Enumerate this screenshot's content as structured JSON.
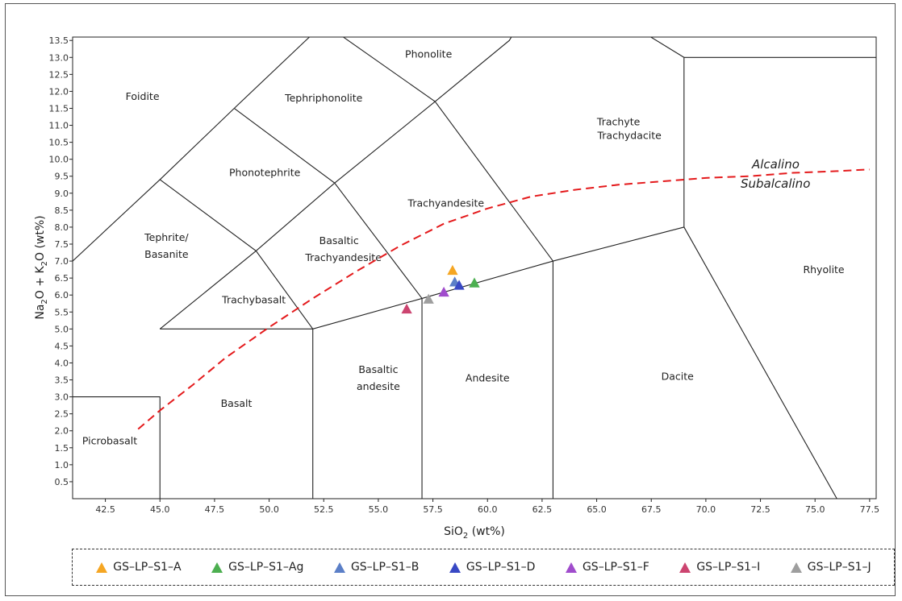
{
  "chart_data": {
    "type": "scatter",
    "title": "",
    "xlabel": "SiO",
    "xlabel_sub": "2",
    "xlabel_unit": " (wt%)",
    "ylabel_parts": [
      "Na",
      "2",
      "O + K",
      "2",
      "O (wt%)"
    ],
    "xlim": [
      41,
      77.8
    ],
    "ylim": [
      0,
      13.6
    ],
    "xticks": [
      "42.5",
      "45.0",
      "47.5",
      "50.0",
      "52.5",
      "55.0",
      "57.5",
      "60.0",
      "62.5",
      "65.0",
      "67.5",
      "70.0",
      "72.5",
      "75.0",
      "77.5"
    ],
    "yticks": [
      "0.5",
      "1.0",
      "1.5",
      "2.0",
      "2.5",
      "3.0",
      "3.5",
      "4.0",
      "4.5",
      "5.0",
      "5.5",
      "6.0",
      "6.5",
      "7.0",
      "7.5",
      "8.0",
      "8.5",
      "9.0",
      "9.5",
      "10.0",
      "10.5",
      "11.0",
      "11.5",
      "12.0",
      "12.5",
      "13.0",
      "13.5"
    ],
    "grid": false,
    "legend_placement": "bottom",
    "fields": [
      {
        "name": "Foidite",
        "x": 44.2,
        "y": 11.75
      },
      {
        "name": "Tephriphonolite",
        "x": 52.5,
        "y": 11.7
      },
      {
        "name": "Phonolite",
        "x": 57.3,
        "y": 13.0
      },
      {
        "name": "Trachyte",
        "x": 66.0,
        "y": 11.0
      },
      {
        "name": "Trachydacite",
        "x": 66.5,
        "y": 10.6
      },
      {
        "name": "Phonotephrite",
        "x": 49.8,
        "y": 9.5
      },
      {
        "name": "Trachyandesite",
        "x": 58.1,
        "y": 8.6
      },
      {
        "name": "Tephrite/",
        "x": 45.3,
        "y": 7.6
      },
      {
        "name": "Basanite",
        "x": 45.3,
        "y": 7.1
      },
      {
        "name": "Basaltic",
        "x": 53.2,
        "y": 7.5
      },
      {
        "name": "Trachyandesite",
        "x": 53.4,
        "y": 7.0
      },
      {
        "name": "Trachybasalt",
        "x": 49.3,
        "y": 5.75
      },
      {
        "name": "Rhyolite",
        "x": 75.4,
        "y": 6.65
      },
      {
        "name": "Basaltic",
        "x": 55.0,
        "y": 3.7
      },
      {
        "name": "andesite",
        "x": 55.0,
        "y": 3.2
      },
      {
        "name": "Andesite",
        "x": 60.0,
        "y": 3.45
      },
      {
        "name": "Dacite",
        "x": 68.7,
        "y": 3.5
      },
      {
        "name": "Basalt",
        "x": 48.5,
        "y": 2.7
      },
      {
        "name": "Picrobasalt",
        "x": 42.7,
        "y": 1.6
      }
    ],
    "boundaries": [
      [
        [
          41,
          3
        ],
        [
          45,
          3
        ],
        [
          45,
          0
        ]
      ],
      [
        [
          45,
          5
        ],
        [
          52,
          5
        ],
        [
          57,
          5.9
        ],
        [
          63,
          7
        ],
        [
          69,
          8
        ],
        [
          76,
          0
        ]
      ],
      [
        [
          52,
          0
        ],
        [
          52,
          5
        ]
      ],
      [
        [
          57,
          0
        ],
        [
          57,
          5.9
        ]
      ],
      [
        [
          63,
          0
        ],
        [
          63,
          7
        ]
      ],
      [
        [
          69,
          8
        ],
        [
          69,
          13
        ],
        [
          77.8,
          13
        ]
      ],
      [
        [
          41,
          7
        ],
        [
          45,
          9.4
        ],
        [
          48.4,
          11.5
        ],
        [
          52.5,
          14
        ]
      ],
      [
        [
          45,
          9.4
        ],
        [
          49.4,
          7.3
        ],
        [
          52,
          5
        ]
      ],
      [
        [
          45,
          5
        ],
        [
          49.4,
          7.3
        ],
        [
          53,
          9.3
        ],
        [
          57.6,
          11.7
        ],
        [
          61,
          13.5
        ],
        [
          63.5,
          16.2
        ]
      ],
      [
        [
          48.4,
          11.5
        ],
        [
          53,
          9.3
        ],
        [
          57,
          5.9
        ]
      ],
      [
        [
          57.6,
          11.7
        ],
        [
          63,
          7
        ]
      ],
      [
        [
          57.6,
          11.7
        ],
        [
          50.3,
          15
        ]
      ],
      [
        [
          65.2,
          14.5
        ],
        [
          69,
          13
        ]
      ]
    ],
    "divider_line": [
      [
        44,
        2.05
      ],
      [
        45,
        2.6
      ],
      [
        46.5,
        3.35
      ],
      [
        48,
        4.15
      ],
      [
        50,
        5.05
      ],
      [
        52,
        5.9
      ],
      [
        54,
        6.7
      ],
      [
        56,
        7.45
      ],
      [
        58,
        8.1
      ],
      [
        60,
        8.55
      ],
      [
        62,
        8.9
      ],
      [
        64,
        9.1
      ],
      [
        66,
        9.25
      ],
      [
        68,
        9.35
      ],
      [
        70,
        9.45
      ],
      [
        72,
        9.5
      ],
      [
        74,
        9.6
      ],
      [
        76,
        9.65
      ],
      [
        77.5,
        9.7
      ]
    ],
    "divider_labels": {
      "above": "Alcalino",
      "below": "Subalcalino"
    },
    "series": [
      {
        "name": "GS–LP–S1–A",
        "color": "#f5a623",
        "points": [
          {
            "x": 58.4,
            "y": 6.72
          }
        ]
      },
      {
        "name": "GS–LP–S1–Ag",
        "color": "#4caf50",
        "points": [
          {
            "x": 59.4,
            "y": 6.35
          }
        ]
      },
      {
        "name": "GS–LP–S1–B",
        "color": "#5b7fc7",
        "points": [
          {
            "x": 58.5,
            "y": 6.38
          }
        ]
      },
      {
        "name": "GS–LP–S1–D",
        "color": "#3848c4",
        "points": [
          {
            "x": 58.7,
            "y": 6.28
          }
        ]
      },
      {
        "name": "GS–LP–S1–F",
        "color": "#a04ccc",
        "points": [
          {
            "x": 58.0,
            "y": 6.08
          }
        ]
      },
      {
        "name": "GS–LP–S1–I",
        "color": "#cc4470",
        "points": [
          {
            "x": 56.3,
            "y": 5.58
          }
        ]
      },
      {
        "name": "GS–LP–S1–J",
        "color": "#9e9e9e",
        "points": [
          {
            "x": 57.3,
            "y": 5.87
          }
        ]
      }
    ]
  }
}
